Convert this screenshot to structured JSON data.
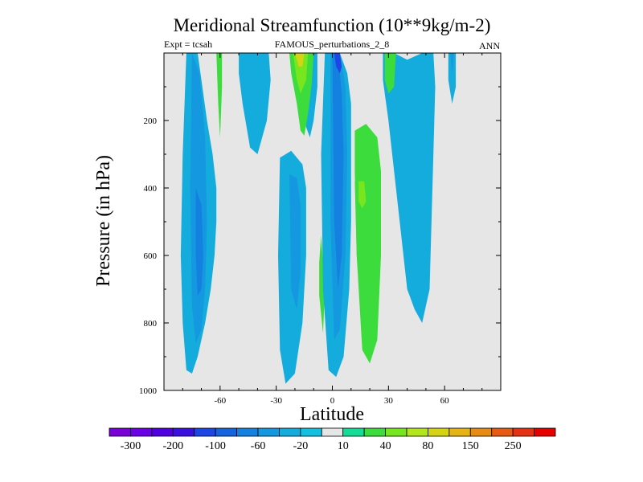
{
  "chart_data": {
    "type": "heatmap",
    "title": "Meridional Streamfunction (10**9kg/m-2)",
    "subtitle_left": "Expt = tcsah",
    "subtitle_center": "FAMOUS_perturbations_2_8",
    "subtitle_right": "ANN",
    "xlabel": "Latitude",
    "ylabel": "Pressure (in hPa)",
    "xlim": [
      -90,
      90
    ],
    "ylim": [
      1000,
      0
    ],
    "x_ticks": [
      -60,
      -30,
      0,
      30,
      60
    ],
    "y_ticks": [
      200,
      400,
      600,
      800,
      1000
    ],
    "background_color": "#e6e6e6",
    "colorbar": {
      "colors": [
        "#7a00d8",
        "#6a00e6",
        "#5000e0",
        "#3a10e0",
        "#1e46e6",
        "#1464e0",
        "#1480e0",
        "#1498e0",
        "#14acdc",
        "#14c0e0",
        "#e6e6e6",
        "#14dc96",
        "#3cdc3c",
        "#78e61e",
        "#b4e61e",
        "#d4d414",
        "#e6b414",
        "#e68c14",
        "#e65a14",
        "#e63214",
        "#e60000"
      ],
      "tick_labels": [
        "-300",
        "-200",
        "-100",
        "-60",
        "-20",
        "10",
        "40",
        "80",
        "150",
        "250"
      ],
      "tick_boundary_index": [
        1,
        3,
        5,
        7,
        9,
        11,
        13,
        15,
        17,
        19
      ]
    },
    "cells": [
      {
        "name": "cell-sh-deep-west",
        "level": -30,
        "x": [
          -78,
          -72,
          -70,
          -67,
          -64,
          -62,
          -62,
          -63,
          -65,
          -68,
          -72,
          -75,
          -78,
          -80,
          -81,
          -80
        ],
        "y": [
          0,
          0,
          80,
          200,
          300,
          400,
          500,
          600,
          700,
          800,
          900,
          950,
          940,
          800,
          600,
          300
        ]
      },
      {
        "name": "cell-sh-deep-core",
        "level": -45,
        "x": [
          -75,
          -71,
          -68,
          -67,
          -68,
          -70,
          -73,
          -75,
          -76
        ],
        "y": [
          0,
          60,
          250,
          500,
          700,
          820,
          860,
          750,
          400
        ]
      },
      {
        "name": "cell-sh-deep-center",
        "level": -70,
        "x": [
          -73,
          -70,
          -69,
          -70,
          -72,
          -73
        ],
        "y": [
          400,
          450,
          600,
          700,
          720,
          600
        ]
      },
      {
        "name": "cell-sh-upper-strip",
        "level": 25,
        "x": [
          -62,
          -59,
          -59,
          -60,
          -61
        ],
        "y": [
          0,
          0,
          100,
          250,
          150
        ]
      },
      {
        "name": "cell-sh-upper-mid",
        "level": -30,
        "x": [
          -50,
          -34,
          -33,
          -35,
          -40,
          -44,
          -48,
          -50
        ],
        "y": [
          0,
          0,
          80,
          200,
          300,
          280,
          150,
          60
        ]
      },
      {
        "name": "cell-nh-upper-mid",
        "level": -30,
        "x": [
          -22,
          -8,
          -8,
          -10,
          -12,
          -14,
          -16,
          -20
        ],
        "y": [
          0,
          0,
          100,
          200,
          250,
          220,
          150,
          80
        ]
      },
      {
        "name": "cell-jet-green",
        "level": 25,
        "x": [
          -23,
          -10,
          -11,
          -13,
          -15,
          -17,
          -19,
          -22
        ],
        "y": [
          0,
          0,
          90,
          180,
          245,
          230,
          150,
          60
        ]
      },
      {
        "name": "cell-jet-lime",
        "level": 60,
        "x": [
          -21,
          -13,
          -14,
          -17,
          -19
        ],
        "y": [
          0,
          0,
          80,
          120,
          80
        ]
      },
      {
        "name": "cell-jet-yellow",
        "level": 100,
        "x": [
          -20,
          -15,
          -16,
          -18
        ],
        "y": [
          0,
          0,
          40,
          40
        ]
      },
      {
        "name": "cell-mid-trop",
        "level": -30,
        "x": [
          -28,
          -22,
          -16,
          -14,
          -14,
          -16,
          -20,
          -25,
          -28,
          -29
        ],
        "y": [
          310,
          290,
          330,
          400,
          600,
          800,
          950,
          980,
          880,
          600
        ]
      },
      {
        "name": "cell-mid-trop-core",
        "level": -45,
        "x": [
          -23,
          -19,
          -17,
          -17,
          -19,
          -22
        ],
        "y": [
          360,
          370,
          450,
          650,
          760,
          700
        ]
      },
      {
        "name": "cell-equator-strip",
        "level": 25,
        "x": [
          -6,
          -5,
          -4,
          -5,
          -7,
          -7
        ],
        "y": [
          540,
          620,
          700,
          830,
          720,
          620
        ]
      },
      {
        "name": "cell-equator-main",
        "level": -30,
        "x": [
          -4,
          4,
          8,
          10,
          10,
          10,
          9,
          6,
          2,
          -2,
          -5,
          -6
        ],
        "y": [
          0,
          0,
          60,
          150,
          300,
          500,
          700,
          900,
          960,
          940,
          700,
          300
        ]
      },
      {
        "name": "cell-equator-core",
        "level": -45,
        "x": [
          -1,
          4,
          7,
          8,
          7,
          4,
          1,
          -1
        ],
        "y": [
          0,
          0,
          100,
          300,
          600,
          820,
          850,
          500
        ]
      },
      {
        "name": "cell-equator-deep",
        "level": -70,
        "x": [
          0,
          3,
          5,
          6,
          5,
          3,
          1
        ],
        "y": [
          0,
          0,
          120,
          300,
          600,
          700,
          500
        ]
      },
      {
        "name": "cell-equator-top",
        "level": -100,
        "x": [
          1,
          4,
          5,
          4,
          2
        ],
        "y": [
          0,
          0,
          40,
          60,
          40
        ]
      },
      {
        "name": "cell-nh-green",
        "level": 25,
        "x": [
          12,
          18,
          24,
          26,
          26,
          24,
          20,
          16,
          13,
          12
        ],
        "y": [
          230,
          210,
          250,
          350,
          600,
          850,
          920,
          880,
          600,
          350
        ]
      },
      {
        "name": "cell-nh-green-core",
        "level": 35,
        "x": [
          12,
          20,
          22,
          20,
          16,
          13
        ],
        "y": [
          380,
          380,
          500,
          750,
          800,
          600
        ]
      },
      {
        "name": "cell-nh-lime",
        "level": 60,
        "x": [
          14,
          17,
          18,
          16,
          14
        ],
        "y": [
          380,
          380,
          440,
          460,
          440
        ]
      },
      {
        "name": "cell-nh-trop-east",
        "level": -30,
        "x": [
          27,
          33,
          40,
          48,
          54,
          55,
          54,
          52,
          48,
          44,
          40,
          36,
          30,
          27
        ],
        "y": [
          0,
          0,
          20,
          0,
          0,
          100,
          300,
          700,
          800,
          760,
          700,
          500,
          200,
          80
        ]
      },
      {
        "name": "cell-nh-trop-green",
        "level": 25,
        "x": [
          28,
          34,
          33,
          30,
          28
        ],
        "y": [
          0,
          0,
          100,
          120,
          80
        ]
      },
      {
        "name": "cell-nh-polar",
        "level": -30,
        "x": [
          62,
          66,
          66,
          64,
          62
        ],
        "y": [
          0,
          0,
          100,
          150,
          80
        ]
      },
      {
        "name": "cell-nh-polar-core",
        "level": -45,
        "x": [
          63,
          65,
          64
        ],
        "y": [
          0,
          0,
          60
        ]
      }
    ]
  }
}
